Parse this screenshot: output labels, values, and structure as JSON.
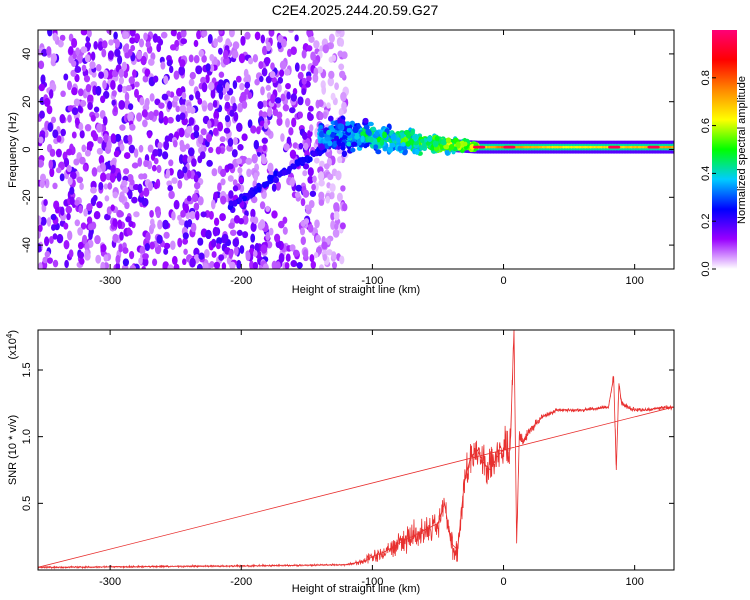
{
  "title": "C2E4.2025.244.20.59.G27",
  "chart_data": [
    {
      "type": "heatmap",
      "xlabel": "Height of straight line (km)",
      "ylabel": "Frequency (Hz)",
      "xlim": [
        -355,
        130
      ],
      "ylim": [
        -50,
        50
      ],
      "xticks": [
        -300,
        -200,
        -100,
        0,
        100
      ],
      "xtick_labels": [
        "-300",
        "-200",
        "-100",
        "0",
        "100"
      ],
      "yticks": [
        -40,
        -20,
        0,
        20,
        40
      ],
      "ytick_labels": [
        "-40",
        "-20",
        "0",
        "20",
        "40"
      ],
      "noise_region": {
        "x_range": [
          -355,
          -120
        ],
        "amplitude_range": [
          0.05,
          0.2
        ]
      },
      "chirp": {
        "from": {
          "x": -210,
          "y": -24
        },
        "to": {
          "x": -130,
          "y": 3
        },
        "amplitude": 0.2
      },
      "signal_band": [
        {
          "x": -140,
          "y": 6,
          "spread": 10,
          "amplitude": 0.3
        },
        {
          "x": -110,
          "y": 6,
          "spread": 8,
          "amplitude": 0.4
        },
        {
          "x": -80,
          "y": 4,
          "spread": 6,
          "amplitude": 0.45
        },
        {
          "x": -50,
          "y": 2,
          "spread": 4,
          "amplitude": 0.55
        },
        {
          "x": -20,
          "y": 1,
          "spread": 2,
          "amplitude": 0.6
        },
        {
          "x": 0,
          "y": 1,
          "spread": 1,
          "amplitude": 0.75
        },
        {
          "x": 50,
          "y": 1,
          "spread": 1,
          "amplitude": 0.6
        },
        {
          "x": 130,
          "y": 1,
          "spread": 1,
          "amplitude": 0.7
        }
      ],
      "peaks": [
        {
          "x": -18,
          "y": 1,
          "amplitude": 0.95
        },
        {
          "x": 5,
          "y": 1,
          "amplitude": 0.95
        },
        {
          "x": 85,
          "y": 1,
          "amplitude": 0.95
        },
        {
          "x": 115,
          "y": 1,
          "amplitude": 0.95
        }
      ],
      "colorbar": {
        "label": "Normalized spectral amplitude",
        "range": [
          0,
          1
        ],
        "ticks": [
          0.0,
          0.2,
          0.4,
          0.6,
          0.8
        ],
        "tick_labels": [
          "0.0",
          "0.2",
          "0.4",
          "0.6",
          "0.8"
        ],
        "colormap": [
          "#ffffff",
          "#9900ff",
          "#0000ff",
          "#00ccff",
          "#00ff00",
          "#ffff00",
          "#ff8800",
          "#ff0000",
          "#ff0077"
        ]
      }
    },
    {
      "type": "line",
      "xlabel": "Height of straight line (km)",
      "ylabel": "SNR (10 * v/v)",
      "scale_label": "(x10",
      "scale_exponent": "4",
      "xlim": [
        -355,
        130
      ],
      "ylim": [
        0,
        1.8
      ],
      "xticks": [
        -300,
        -200,
        -100,
        0,
        100
      ],
      "xtick_labels": [
        "-300",
        "-200",
        "-100",
        "0",
        "100"
      ],
      "yticks": [
        0.5,
        1.0,
        1.5
      ],
      "ytick_labels": [
        "0.5",
        "1.0",
        "1.5"
      ],
      "series": [
        {
          "name": "SNR",
          "color": "#e8302f",
          "x": [
            -355,
            -200,
            -120,
            -105,
            -100,
            -90,
            -80,
            -70,
            -60,
            -50,
            -45,
            -40,
            -35,
            -30,
            -25,
            -20,
            -15,
            -10,
            -5,
            0,
            5,
            8,
            10,
            12,
            15,
            20,
            25,
            30,
            35,
            40,
            60,
            80,
            84,
            86,
            88,
            90,
            95,
            100,
            110,
            120,
            130
          ],
          "y": [
            0.02,
            0.03,
            0.04,
            0.07,
            0.1,
            0.14,
            0.2,
            0.25,
            0.3,
            0.35,
            0.5,
            0.2,
            0.15,
            0.65,
            0.85,
            0.9,
            0.8,
            0.75,
            0.85,
            0.9,
            0.9,
            1.8,
            0.2,
            1.0,
            0.95,
            1.05,
            1.1,
            1.15,
            1.17,
            1.2,
            1.2,
            1.22,
            1.45,
            0.75,
            1.4,
            1.25,
            1.22,
            1.2,
            1.2,
            1.22,
            1.22
          ],
          "noise": [
            0.01,
            0.01,
            0.01,
            0.05,
            0.08,
            0.1,
            0.12,
            0.15,
            0.18,
            0.2,
            0.15,
            0.12,
            0.15,
            0.2,
            0.2,
            0.2,
            0.2,
            0.2,
            0.2,
            0.2,
            0.2,
            0.1,
            0.1,
            0.15,
            0.1,
            0.05,
            0.04,
            0.03,
            0.03,
            0.02,
            0.02,
            0.02,
            0.05,
            0.05,
            0.05,
            0.04,
            0.03,
            0.02,
            0.02,
            0.02,
            0.02
          ]
        }
      ]
    }
  ]
}
